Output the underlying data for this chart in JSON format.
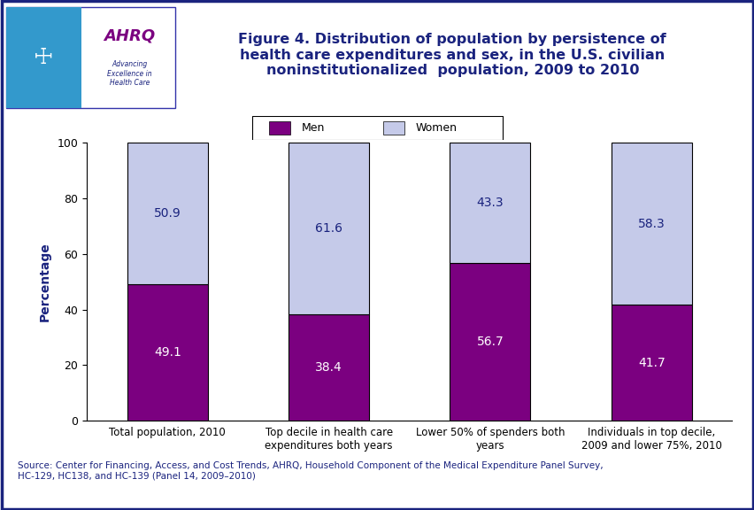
{
  "categories": [
    "Total population, 2010",
    "Top decile in health care\nexpenditures both years",
    "Lower 50% of spenders both\nyears",
    "Individuals in top decile,\n2009 and lower 75%, 2010"
  ],
  "men_values": [
    49.1,
    38.4,
    56.7,
    41.7
  ],
  "women_values": [
    50.9,
    61.6,
    43.3,
    58.3
  ],
  "men_color": "#7b0080",
  "women_color": "#c5cae9",
  "title_line1": "Figure 4. Distribution of population by persistence of",
  "title_line2": "health care expenditures and sex, in the U.S. civilian",
  "title_line3": "noninstitutionalized  population, 2009 to 2010",
  "ylabel": "Percentage",
  "ylim": [
    0,
    100
  ],
  "yticks": [
    0,
    20,
    40,
    60,
    80,
    100
  ],
  "legend_labels": [
    "Men",
    "Women"
  ],
  "source_text": "Source: Center for Financing, Access, and Cost Trends, AHRQ, Household Component of the Medical Expenditure Panel Survey,\nHC-129, HC138, and HC-139 (Panel 14, 2009–2010)",
  "outer_bg": "#ffffff",
  "plot_bg": "#ffffff",
  "header_stripe_color": "#1a237e",
  "header_stripe2_color": "#5c7cde",
  "title_color": "#1a237e",
  "ylabel_color": "#1a237e",
  "men_label_color": "#ffffff",
  "women_label_color": "#1a237e",
  "bar_width": 0.5,
  "bar_positions": [
    0,
    1,
    2,
    3
  ],
  "bar_edgecolor": "#000000",
  "outer_border_color": "#1a237e"
}
